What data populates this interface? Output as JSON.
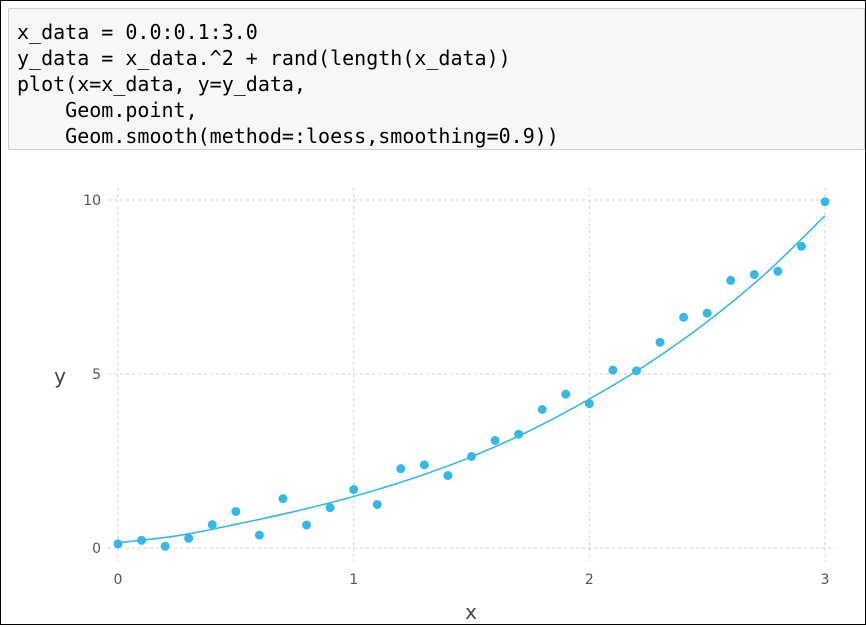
{
  "code_cell": {
    "lines": [
      "x_data = 0.0:0.1:3.0",
      "y_data = x_data.^2 + rand(length(x_data))",
      "plot(x=x_data, y=y_data,",
      "    Geom.point,",
      "    Geom.smooth(method=:loess,smoothing=0.9))"
    ]
  },
  "chart_data": {
    "type": "scatter",
    "xlabel": "x",
    "ylabel": "y",
    "xlim": [
      0,
      3
    ],
    "ylim": [
      0,
      10
    ],
    "x_ticks": [
      "0",
      "1",
      "2",
      "3"
    ],
    "y_ticks": [
      "0",
      "5",
      "10"
    ],
    "grid": true,
    "series": [
      {
        "kind": "points",
        "color": "#35b8e5",
        "x": [
          0.0,
          0.1,
          0.2,
          0.3,
          0.4,
          0.5,
          0.6,
          0.7,
          0.8,
          0.9,
          1.0,
          1.1,
          1.2,
          1.3,
          1.4,
          1.5,
          1.6,
          1.7,
          1.8,
          1.9,
          2.0,
          2.1,
          2.2,
          2.3,
          2.4,
          2.5,
          2.6,
          2.7,
          2.8,
          2.9,
          3.0
        ],
        "y": [
          0.12,
          0.22,
          0.05,
          0.28,
          0.67,
          1.05,
          0.37,
          1.42,
          0.66,
          1.16,
          1.68,
          1.25,
          2.28,
          2.39,
          2.08,
          2.63,
          3.09,
          3.27,
          3.98,
          4.42,
          4.15,
          5.11,
          5.09,
          5.91,
          6.63,
          6.75,
          7.69,
          7.86,
          7.95,
          8.67,
          9.95
        ]
      },
      {
        "kind": "smooth-line",
        "color": "#35b8e5",
        "x": [
          0.0,
          0.25,
          0.5,
          0.75,
          1.0,
          1.25,
          1.5,
          1.75,
          2.0,
          2.25,
          2.5,
          2.75,
          3.0
        ],
        "y": [
          0.15,
          0.35,
          0.68,
          1.05,
          1.48,
          2.0,
          2.62,
          3.38,
          4.28,
          5.3,
          6.5,
          7.9,
          9.55
        ]
      }
    ]
  }
}
